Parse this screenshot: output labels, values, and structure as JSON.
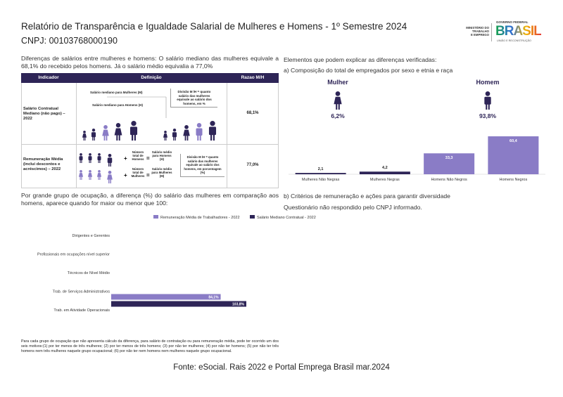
{
  "header": {
    "title": "Relatório de Transparência e Igualdade Salarial de Mulheres e Homens - 1º Semestre 2024",
    "cnpj": "CNPJ: 00103768000190"
  },
  "logo": {
    "ministry": [
      "MINISTÉRIO DO",
      "TRABALHO",
      "E EMPREGO"
    ],
    "government": "GOVERNO FEDERAL",
    "brand": "BRASIL",
    "motto": "UNIÃO E RECONSTRUÇÃO"
  },
  "intro": "Diferenças de salários entre mulheres e homens: O salário mediano das mulheres equivale a 68,1% do recebido pelos homens. Já o salário médio equivalia a 77,0%",
  "table": {
    "headers": [
      "Indicador",
      "Definição",
      "Razao M/H"
    ],
    "rows": [
      {
        "indicator": "Salário Contratual Mediano (não pago) – 2022",
        "definition": [
          "Salário mediano para Mulheres (M)",
          "Salário mediano para Homens (H)",
          "Divisão M /H = quanto salário das mulheres equivale ao salário dos homens, em %"
        ],
        "ratio": "68,1%"
      },
      {
        "indicator": "Remuneração Média (inclui descontos e acréscimos) – 2022",
        "definition": [
          "Número total de Homens",
          "Salário médio para Homens (H)",
          "Número total de Mulheres",
          "Salário médio para Mulheres (M)",
          "Divisão M /H = quanto salário das mulheres equivale ao salário dos homens, em porcentagem (%)"
        ],
        "ratio": "77,0%"
      }
    ]
  },
  "occupation_intro": "Por grande grupo de ocupação, a diferença (%) do salário das mulheres em comparação aos homens, aparece quando for maior ou menor que 100:",
  "occupation_chart": {
    "type": "bar",
    "orientation": "horizontal",
    "categories": [
      "Dirigentes e Gerentes",
      "Profissionais em ocupações nível superior",
      "Técnicos de Nível Médio",
      "Trab. de Serviços Administrativos",
      "Trab. em Atividade Operacionais"
    ],
    "series": [
      {
        "name": "Remuneração Média de Trabalhadores - 2022",
        "color": "#8a7cc6",
        "values": [
          null,
          null,
          null,
          84.1,
          null
        ],
        "value_labels": [
          null,
          null,
          null,
          "84,1%",
          null
        ]
      },
      {
        "name": "Salário Mediano Contratual - 2022",
        "color": "#2e2557",
        "values": [
          null,
          null,
          null,
          103.8,
          null
        ],
        "value_labels": [
          null,
          null,
          null,
          "103,8%",
          null
        ]
      }
    ]
  },
  "footnote": "Para cada grupo de ocupação que não apresenta cálculo da diferença, para salário de contratação ou para remuneração média, pode ter ocorrido um dos seis motivos:(1) por ter menos de três mulheres; (2) por ter menos de três homens; (3) por não ter mulheres; (4) por não ter homens; (5) por não ter três homens nem três mulheres naquele grupo ocupacional; (6) por não ter nem homens nem mulheres naquele grupo ocupacional.",
  "source": "Fonte: eSocial. Rais 2022 e Portal Emprega Brasil mar.2024",
  "right": {
    "heading": "Elementos que podem explicar as diferenças verificadas:",
    "section_a": "a) Composição do total de empregados por sexo e etnia e raça",
    "gender": [
      {
        "label": "Mulher",
        "share": "6,2%",
        "color": "#2e2557"
      },
      {
        "label": "Homem",
        "share": "93,8%",
        "color": "#2e2557"
      }
    ],
    "section_b": "b) Critérios de remuneração e ações para garantir diversidade",
    "section_b_text": "Questionário não respondido pelo CNPJ informado."
  },
  "composition_chart": {
    "type": "bar",
    "categories": [
      "Mulheres Não Negras",
      "Mulheres Negras",
      "Homens Não Negros",
      "Homens Negros"
    ],
    "values": [
      2.1,
      4.2,
      33.3,
      60.4
    ],
    "value_labels": [
      "2,1",
      "4,2",
      "33,3",
      "60,4"
    ],
    "colors": [
      "#2e2557",
      "#2e2557",
      "#8a7cc6",
      "#8a7cc6"
    ]
  }
}
